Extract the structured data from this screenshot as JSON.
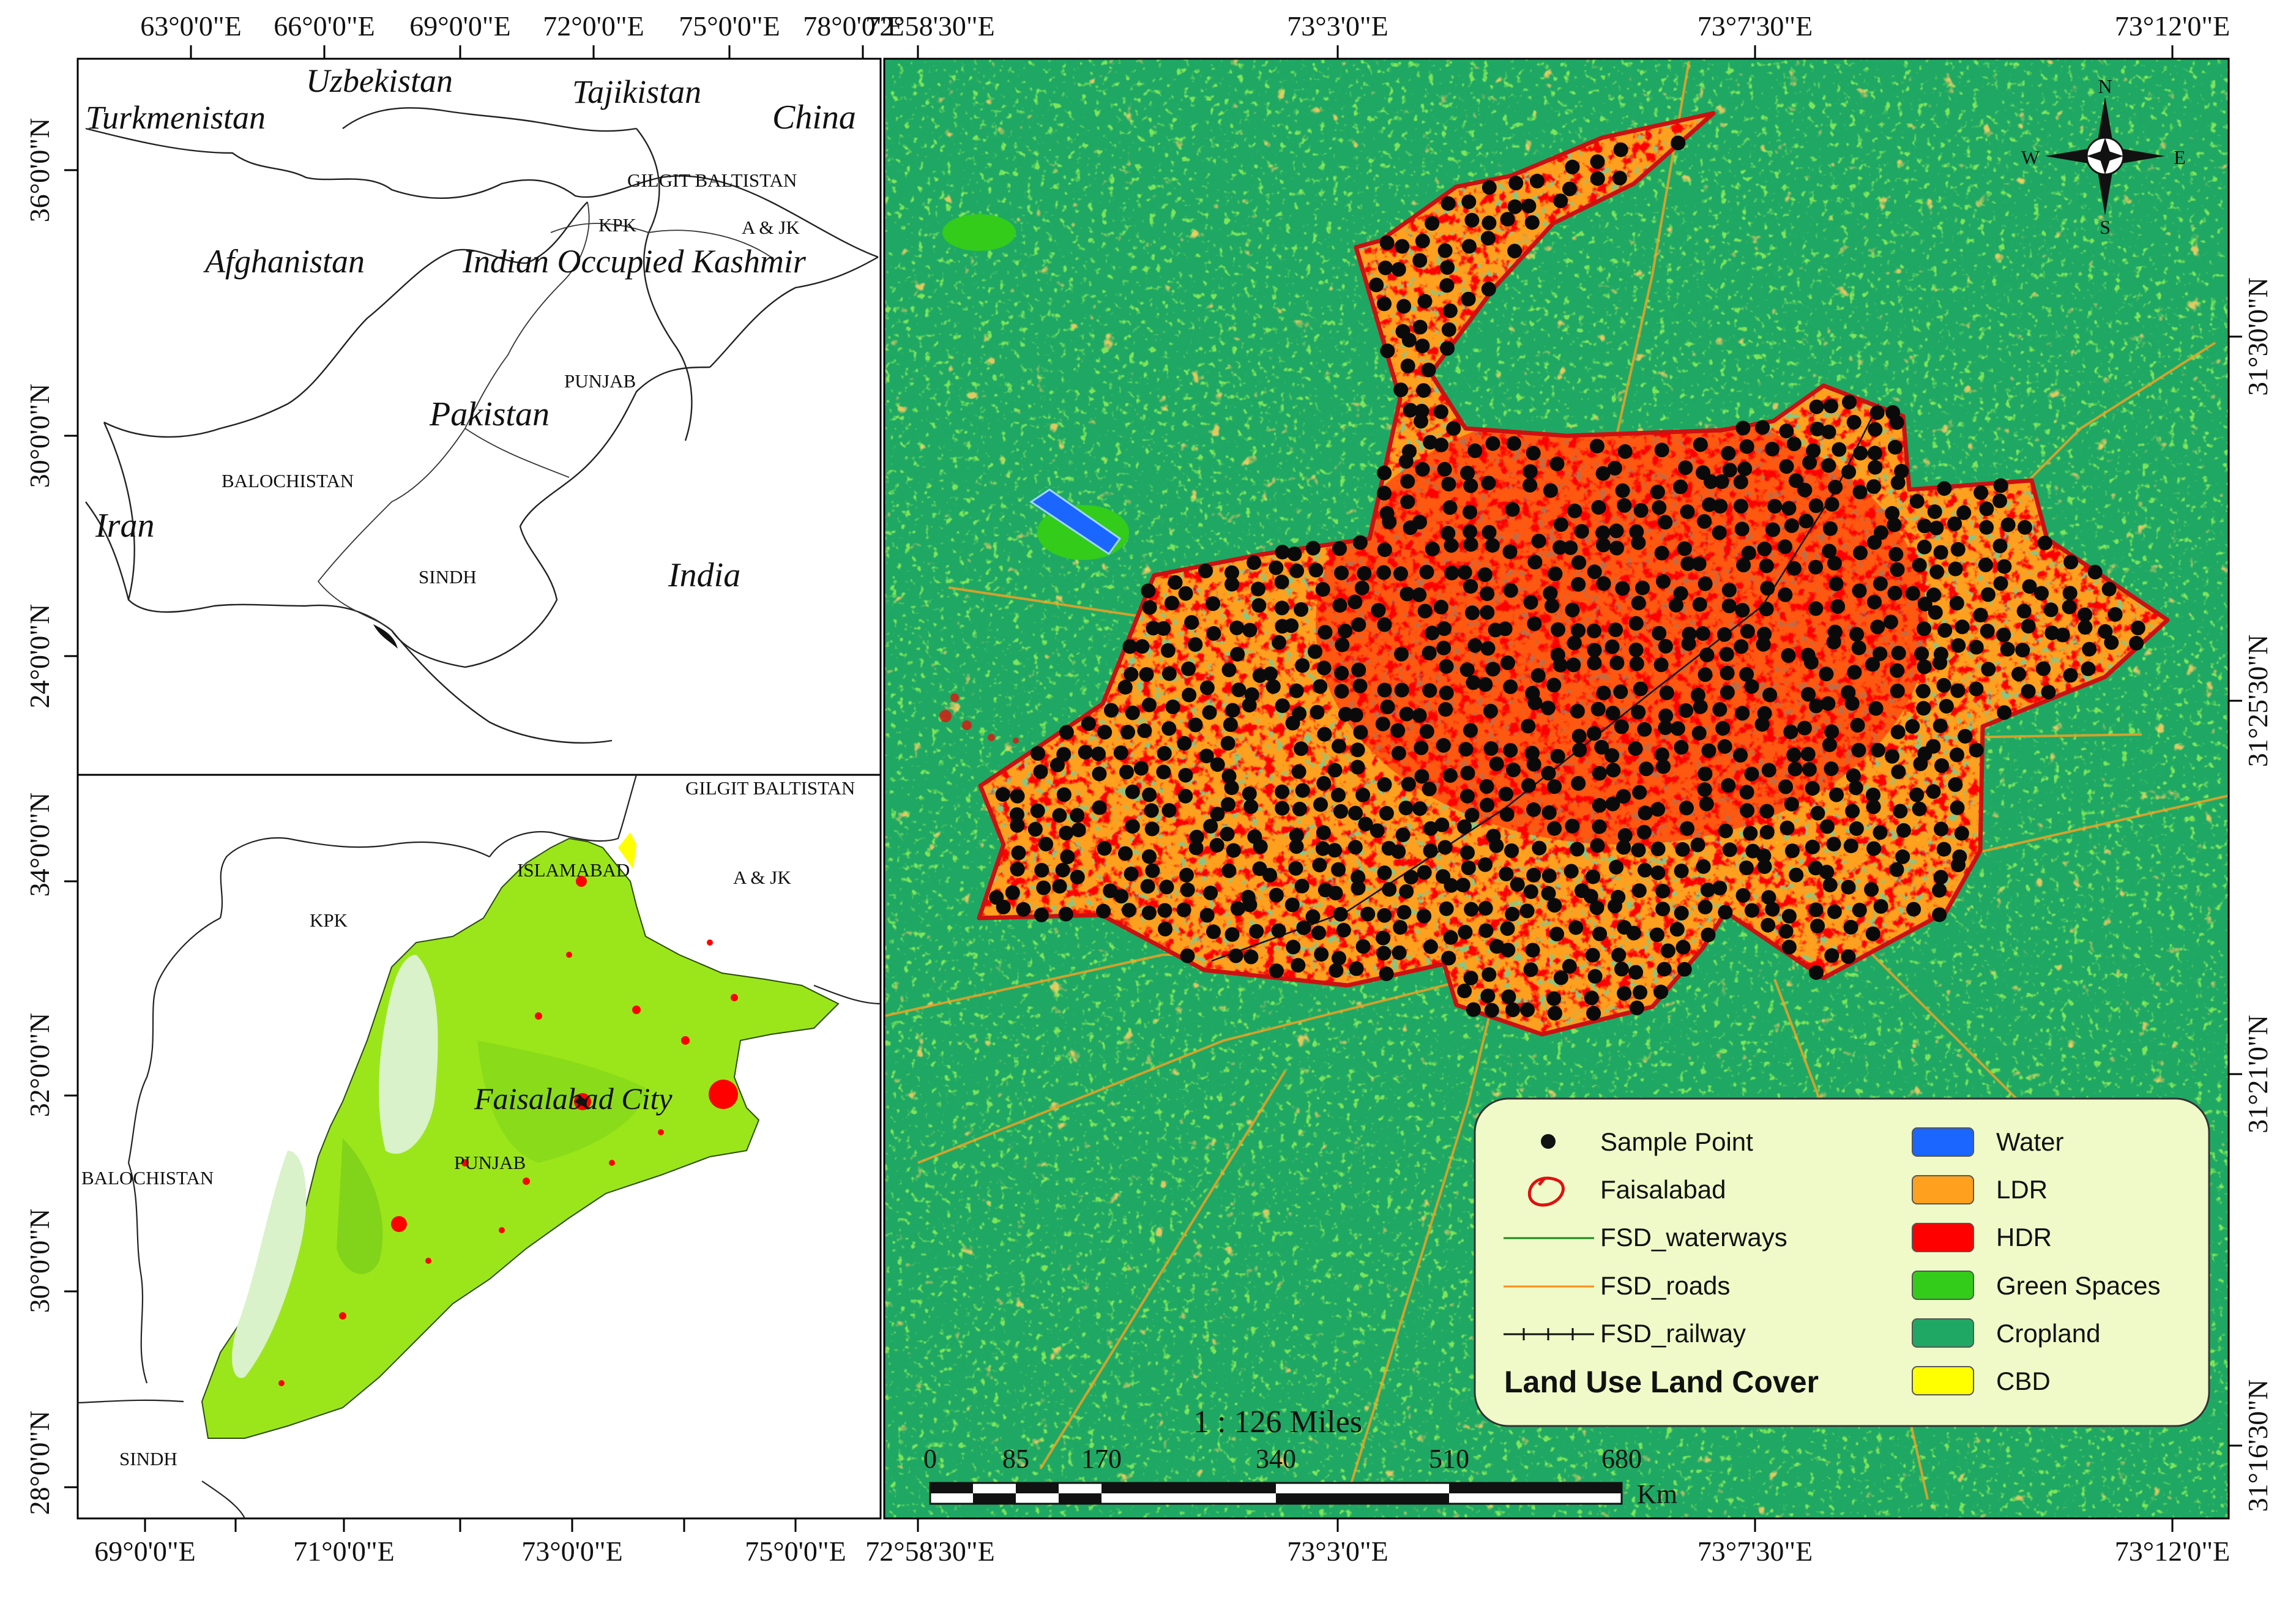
{
  "top_map": {
    "lon_labels": [
      "63°0'0\"E",
      "66°0'0\"E",
      "69°0'0\"E",
      "72°0'0\"E",
      "75°0'0\"E",
      "78°0'0\"E"
    ],
    "lat_labels": [
      "36°0'0\"N",
      "30°0'0\"N",
      "24°0'0\"N"
    ],
    "countries": [
      "Turkmenistan",
      "Uzbekistan",
      "Tajikistan",
      "China",
      "Afghanistan",
      "Indian Occupied Kashmir",
      "Pakistan",
      "Iran",
      "India"
    ],
    "provinces": [
      "GILGIT BALTISTAN",
      "KPK",
      "A & JK",
      "PUNJAB",
      "BALOCHISTAN",
      "SINDH"
    ]
  },
  "bottom_map": {
    "lon_labels": [
      "69°0'0\"E",
      "71°0'0\"E",
      "73°0'0\"E",
      "75°0'0\"E"
    ],
    "lat_labels": [
      "34°0'0\"N",
      "32°0'0\"N",
      "30°0'0\"N",
      "28°0'0\"N"
    ],
    "regions": [
      "GILGIT BALTISTAN",
      "ISLAMABAD",
      "A & JK",
      "KPK",
      "BALOCHISTAN",
      "PUNJAB",
      "SINDH"
    ],
    "city_label": "Faisalabad City",
    "colors": {
      "punjab_fill": "#9be61a",
      "desert": "#d9f2c9",
      "urban": "#ff0000"
    }
  },
  "main_map": {
    "lon_labels": [
      "72°58'30\"E",
      "73°3'0\"E",
      "73°7'30\"E",
      "73°12'0\"E"
    ],
    "lat_labels": [
      "31°30'0\"N",
      "31°25'30\"N",
      "31°21'0\"N",
      "31°16'30\"N"
    ],
    "compass": {
      "n": "N",
      "s": "S",
      "e": "E",
      "w": "W"
    },
    "scale": {
      "ratio": "1 : 126 Miles",
      "ticks": [
        "0",
        "85",
        "170",
        "340",
        "510",
        "680"
      ],
      "unit": "Km"
    },
    "colors": {
      "cropland": "#1fa864",
      "green_spaces": "#33cc1a",
      "ldr": "#ffa01e",
      "hdr": "#ff0000",
      "water": "#1a66ff",
      "cbd": "#ffff00",
      "boundary": "#cc1111"
    }
  },
  "legend": {
    "title": "Land Use Land Cover",
    "left": [
      {
        "label": "Sample Point",
        "icon": "black-dot"
      },
      {
        "label": "Faisalabad",
        "icon": "red-boundary-outline"
      },
      {
        "label": "FSD_waterways",
        "icon": "green-line"
      },
      {
        "label": "FSD_roads",
        "icon": "orange-line"
      },
      {
        "label": "FSD_railway",
        "icon": "railway-line"
      }
    ],
    "right": [
      {
        "label": "Water",
        "color": "#1a66ff"
      },
      {
        "label": "LDR",
        "color": "#ffa01e"
      },
      {
        "label": "HDR",
        "color": "#ff0000"
      },
      {
        "label": "Green Spaces",
        "color": "#33cc1a"
      },
      {
        "label": "Cropland",
        "color": "#1fa864"
      },
      {
        "label": "CBD",
        "color": "#ffff00"
      }
    ]
  }
}
